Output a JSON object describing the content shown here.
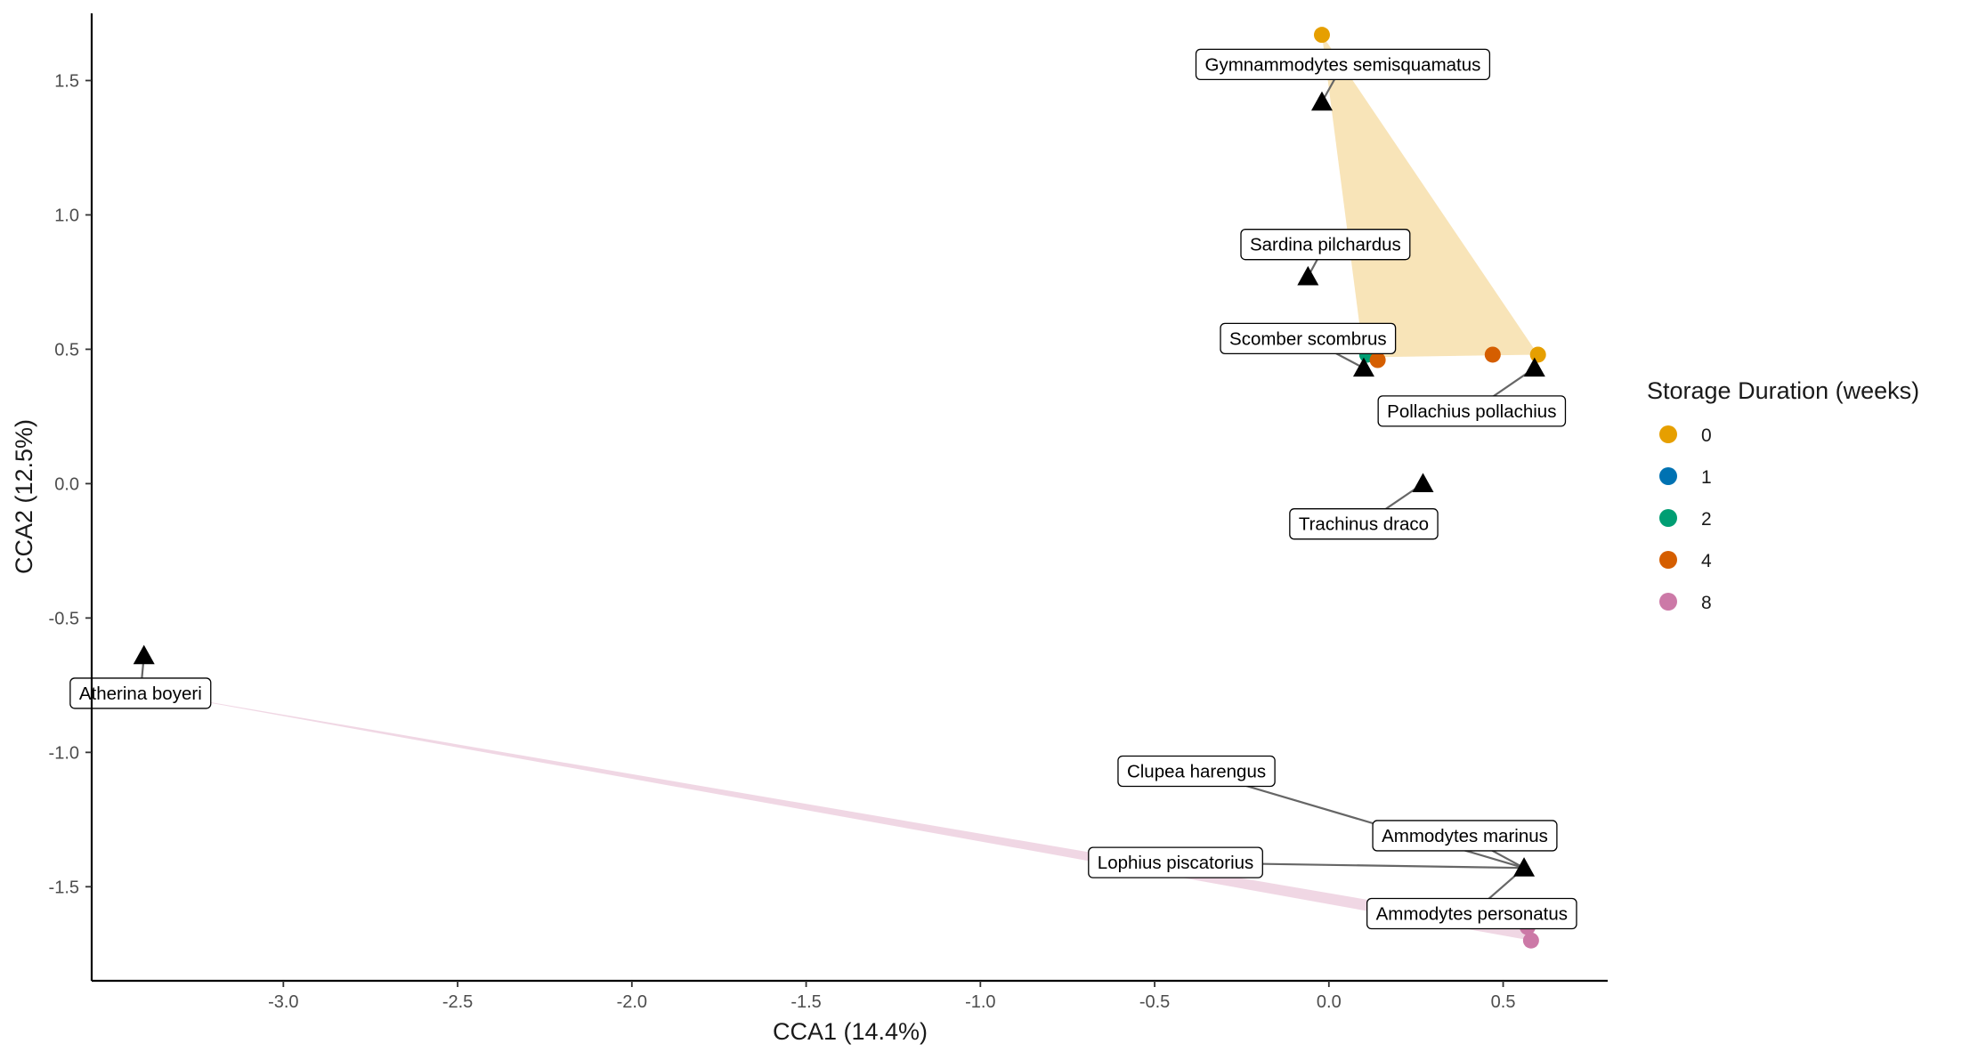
{
  "chart_data": {
    "type": "scatter",
    "title": "",
    "xlabel": "CCA1 (14.4%)",
    "ylabel": "CCA2 (12.5%)",
    "xlim": [
      -3.55,
      0.8
    ],
    "ylim": [
      -1.85,
      1.75
    ],
    "xticks": [
      -3.0,
      -2.5,
      -2.0,
      -1.5,
      -1.0,
      -0.5,
      0.0,
      0.5
    ],
    "xtick_labels": [
      "-3.0",
      "-2.5",
      "-2.0",
      "-1.5",
      "-1.0",
      "-0.5",
      "0.0",
      "0.5"
    ],
    "yticks": [
      -1.5,
      -1.0,
      -0.5,
      0.0,
      0.5,
      1.0,
      1.5
    ],
    "ytick_labels": [
      "-1.5",
      "-1.0",
      "-0.5",
      "0.0",
      "0.5",
      "1.0",
      "1.5"
    ],
    "grid": false,
    "legend": {
      "title": "Storage Duration (weeks)",
      "position": "right",
      "entries": [
        {
          "label": "0",
          "color": "#E69F00"
        },
        {
          "label": "1",
          "color": "#0072B2"
        },
        {
          "label": "2",
          "color": "#009E73"
        },
        {
          "label": "4",
          "color": "#D55E00"
        },
        {
          "label": "8",
          "color": "#CC79A7"
        }
      ]
    },
    "hulls": [
      {
        "group": "0",
        "color": "#E69F00",
        "opacity": 0.28,
        "points": [
          [
            -0.02,
            1.67
          ],
          [
            0.1,
            0.47
          ],
          [
            0.6,
            0.48
          ]
        ]
      },
      {
        "group": "8",
        "color": "#CC79A7",
        "opacity": 0.3,
        "points": [
          [
            -3.45,
            -0.76
          ],
          [
            0.58,
            -1.7
          ],
          [
            0.57,
            -1.65
          ]
        ]
      }
    ],
    "samples": [
      {
        "group": "0",
        "x": -0.02,
        "y": 1.67
      },
      {
        "group": "0",
        "x": 0.6,
        "y": 0.48
      },
      {
        "group": "2",
        "x": -0.06,
        "y": 0.89
      },
      {
        "group": "2",
        "x": 0.11,
        "y": 0.48
      },
      {
        "group": "4",
        "x": 0.14,
        "y": 0.46
      },
      {
        "group": "4",
        "x": 0.47,
        "y": 0.48
      },
      {
        "group": "8",
        "x": -3.45,
        "y": -0.76
      },
      {
        "group": "8",
        "x": 0.57,
        "y": -1.65
      },
      {
        "group": "8",
        "x": 0.58,
        "y": -1.7
      }
    ],
    "species": [
      {
        "name": "Gymnammodytes semisquamatus",
        "x": -0.02,
        "y": 1.42,
        "label_x": 0.04,
        "label_y": 1.56
      },
      {
        "name": "Sardina pilchardus",
        "x": -0.06,
        "y": 0.77,
        "label_x": -0.01,
        "label_y": 0.89
      },
      {
        "name": "Scomber scombrus",
        "x": 0.1,
        "y": 0.43,
        "label_x": -0.06,
        "label_y": 0.54
      },
      {
        "name": "Pollachius pollachius",
        "x": 0.59,
        "y": 0.43,
        "label_x": 0.41,
        "label_y": 0.27
      },
      {
        "name": "Trachinus draco",
        "x": 0.27,
        "y": 0.0,
        "label_x": 0.1,
        "label_y": -0.15
      },
      {
        "name": "Atherina boyeri",
        "x": -3.4,
        "y": -0.64,
        "label_x": -3.41,
        "label_y": -0.78
      },
      {
        "name": "Clupea harengus",
        "x": 0.56,
        "y": -1.43,
        "label_x": -0.38,
        "label_y": -1.07
      },
      {
        "name": "Ammodytes marinus",
        "x": 0.56,
        "y": -1.43,
        "label_x": 0.39,
        "label_y": -1.31
      },
      {
        "name": "Lophius piscatorius",
        "x": 0.56,
        "y": -1.43,
        "label_x": -0.44,
        "label_y": -1.41
      },
      {
        "name": "Ammodytes personatus",
        "x": 0.56,
        "y": -1.43,
        "label_x": 0.41,
        "label_y": -1.6
      }
    ]
  }
}
